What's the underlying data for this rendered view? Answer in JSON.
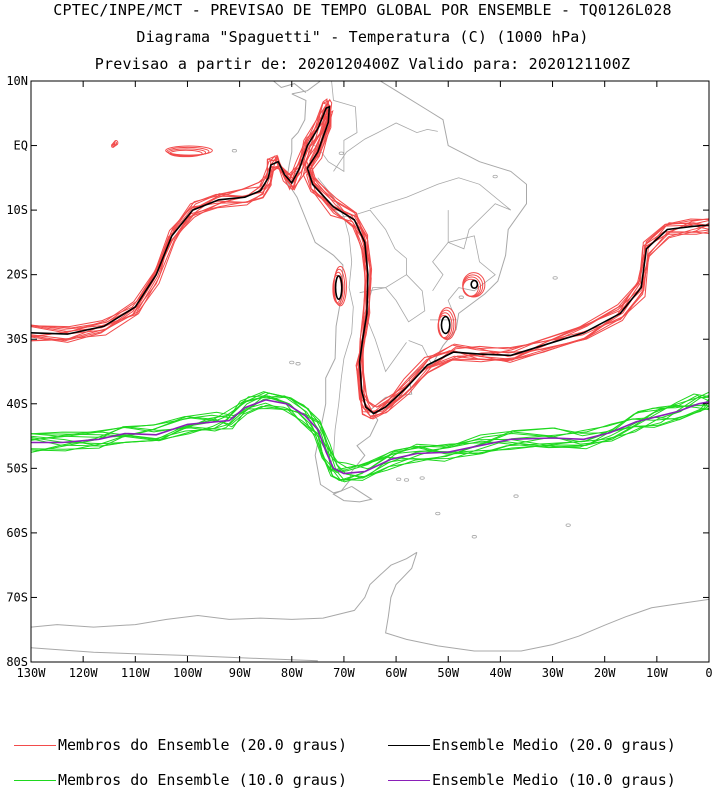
{
  "header": {
    "line1": "CPTEC/INPE/MCT - PREVISAO DE TEMPO GLOBAL POR ENSEMBLE - TQ0126L028",
    "line2": "Diagrama \"Spaguetti\" - Temperatura (C) (1000 hPa)",
    "line3": "Previsao a partir de: 2020120400Z  Valido para: 2020121100Z"
  },
  "map": {
    "extent": {
      "lon": [
        -130,
        0
      ],
      "lat": [
        -80,
        10
      ]
    },
    "lat_ticks": [
      {
        "value": 10,
        "label": "10N"
      },
      {
        "value": 0,
        "label": "EQ"
      },
      {
        "value": -10,
        "label": "10S"
      },
      {
        "value": -20,
        "label": "20S"
      },
      {
        "value": -30,
        "label": "30S"
      },
      {
        "value": -40,
        "label": "40S"
      },
      {
        "value": -50,
        "label": "50S"
      },
      {
        "value": -60,
        "label": "60S"
      },
      {
        "value": -70,
        "label": "70S"
      },
      {
        "value": -80,
        "label": "80S"
      }
    ],
    "lon_ticks": [
      {
        "value": -130,
        "label": "130W"
      },
      {
        "value": -120,
        "label": "120W"
      },
      {
        "value": -110,
        "label": "110W"
      },
      {
        "value": -100,
        "label": "100W"
      },
      {
        "value": -90,
        "label": "90W"
      },
      {
        "value": -80,
        "label": "80W"
      },
      {
        "value": -70,
        "label": "70W"
      },
      {
        "value": -60,
        "label": "60W"
      },
      {
        "value": -50,
        "label": "50W"
      },
      {
        "value": -40,
        "label": "40W"
      },
      {
        "value": -30,
        "label": "30W"
      },
      {
        "value": -20,
        "label": "20W"
      },
      {
        "value": -10,
        "label": "10W"
      },
      {
        "value": 0,
        "label": "0"
      }
    ],
    "colors": {
      "member_20": "#f24b4b",
      "mean_20": "#000000",
      "member_10": "#1ed81e",
      "mean_10": "#8a1fb8",
      "coast": "#a8a8a8",
      "frame": "#000000"
    },
    "contours": {
      "mean_20": [
        [
          -130,
          -29
        ],
        [
          -123,
          -29.2
        ],
        [
          -116,
          -28
        ],
        [
          -110,
          -25
        ],
        [
          -106,
          -20
        ],
        [
          -103,
          -14
        ],
        [
          -99,
          -10
        ],
        [
          -94,
          -8.4
        ],
        [
          -89,
          -8
        ],
        [
          -86,
          -7
        ],
        [
          -84.5,
          -5
        ],
        [
          -84,
          -3
        ],
        [
          -82.6,
          -2.5
        ],
        [
          -81.4,
          -4.5
        ],
        [
          -80,
          -5.8
        ],
        [
          -78.5,
          -3.5
        ],
        [
          -77,
          0
        ],
        [
          -75,
          2.6
        ],
        [
          -73.4,
          5.8
        ],
        [
          -72.8,
          6
        ],
        [
          -73,
          3.6
        ],
        [
          -75,
          -1
        ],
        [
          -77,
          -3.5
        ],
        [
          -76,
          -6
        ],
        [
          -72,
          -9.5
        ],
        [
          -68,
          -11.5
        ],
        [
          -66,
          -15
        ],
        [
          -65.4,
          -20
        ],
        [
          -65.6,
          -26
        ],
        [
          -66.4,
          -30
        ],
        [
          -67,
          -33.5
        ],
        [
          -66.6,
          -38
        ],
        [
          -65.8,
          -40.5
        ],
        [
          -64.3,
          -41.5
        ],
        [
          -62,
          -40.5
        ],
        [
          -58,
          -37.5
        ],
        [
          -54,
          -34
        ],
        [
          -49,
          -32
        ],
        [
          -44,
          -32.3
        ],
        [
          -38,
          -32.5
        ],
        [
          -32,
          -31
        ],
        [
          -24,
          -29
        ],
        [
          -17,
          -26
        ],
        [
          -13,
          -22
        ],
        [
          -12,
          -16
        ],
        [
          -8,
          -13
        ],
        [
          -3,
          -12.5
        ],
        [
          0,
          -12.3
        ]
      ],
      "mean_10": [
        [
          -130,
          -46
        ],
        [
          -124,
          -46
        ],
        [
          -117,
          -45.5
        ],
        [
          -112,
          -44.6
        ],
        [
          -106,
          -44.8
        ],
        [
          -100,
          -43.2
        ],
        [
          -95,
          -42.8
        ],
        [
          -92,
          -42.6
        ],
        [
          -89,
          -40.6
        ],
        [
          -85,
          -39.4
        ],
        [
          -81,
          -40
        ],
        [
          -77.5,
          -41.8
        ],
        [
          -75,
          -44
        ],
        [
          -73.4,
          -47.5
        ],
        [
          -72,
          -50
        ],
        [
          -70,
          -50.8
        ],
        [
          -66,
          -50.5
        ],
        [
          -61,
          -48.6
        ],
        [
          -56,
          -47.7
        ],
        [
          -50,
          -47.5
        ],
        [
          -44,
          -46.5
        ],
        [
          -38,
          -45.5
        ],
        [
          -30,
          -45.3
        ],
        [
          -24,
          -45.5
        ],
        [
          -19,
          -44.5
        ],
        [
          -14,
          -42.8
        ],
        [
          -10,
          -42
        ],
        [
          -6,
          -41.2
        ],
        [
          -2,
          -40
        ],
        [
          0,
          -39.7
        ]
      ],
      "closed_20_mean": [
        {
          "center": [
            -71,
            -22
          ],
          "r": [
            0.6,
            1.8
          ]
        },
        {
          "center": [
            -50.5,
            -27.8
          ],
          "r": [
            0.8,
            1.3
          ]
        },
        {
          "center": [
            -45,
            -21.5
          ],
          "r": [
            0.6,
            0.6
          ]
        }
      ],
      "closed_20_members": [
        {
          "center": [
            -71,
            -22
          ],
          "r": [
            1.0,
            2.6
          ]
        },
        {
          "center": [
            -50.5,
            -27.8
          ],
          "r": [
            1.4,
            2.1
          ]
        },
        {
          "center": [
            -45.4,
            -21.8
          ],
          "r": [
            1.8,
            1.6
          ]
        },
        {
          "center": [
            -100,
            -1
          ],
          "r": [
            3.8,
            0.6
          ]
        },
        {
          "center": [
            -114,
            0.2
          ],
          "r": [
            0.3,
            0.3
          ]
        }
      ],
      "member_count": 12
    }
  },
  "legend": [
    {
      "label": "Membros do Ensemble (20.0 graus)",
      "color": "#f24b4b"
    },
    {
      "label": "Ensemble Medio (20.0 graus)",
      "color": "#000000"
    },
    {
      "label": "Membros do Ensemble (10.0 graus)",
      "color": "#1ed81e"
    },
    {
      "label": "Ensemble Medio (10.0 graus)",
      "color": "#8a1fb8"
    }
  ]
}
